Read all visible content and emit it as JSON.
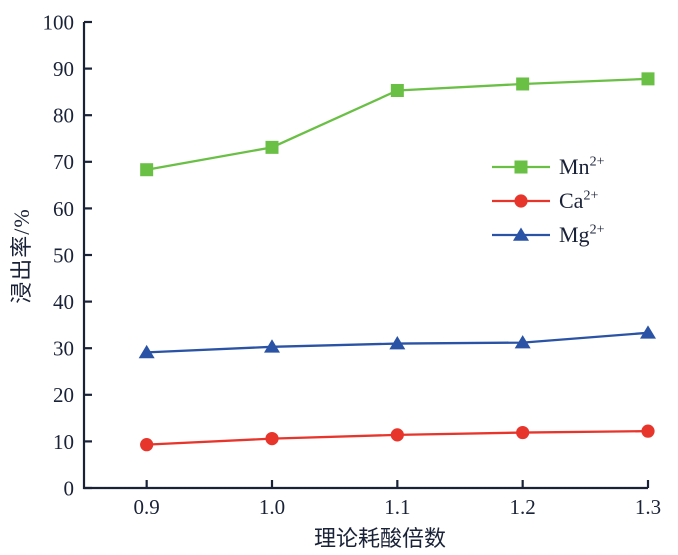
{
  "colors": {
    "background": "#ffffff",
    "axis": "#1a2238",
    "tick_text": "#1a2238",
    "mn_green": "#6abf45",
    "ca_red": "#e8352c",
    "mg_blue": "#2a53a5"
  },
  "chart_data": {
    "type": "line",
    "title": "",
    "xlabel": "理论耗酸倍数",
    "ylabel": "浸出率/%",
    "grid": false,
    "legend_position": "inside-right-middle",
    "xlim": [
      0.85,
      1.3
    ],
    "ylim": [
      0,
      100
    ],
    "x": [
      0.9,
      1.0,
      1.1,
      1.2,
      1.3
    ],
    "x_tick_labels": [
      "0.9",
      "1.0",
      "1.1",
      "1.2",
      "1.3"
    ],
    "y_ticks": [
      0,
      10,
      20,
      30,
      40,
      50,
      60,
      70,
      80,
      90,
      100
    ],
    "y_tick_labels": [
      "0",
      "10",
      "20",
      "30",
      "40",
      "50",
      "60",
      "70",
      "80",
      "90",
      "100"
    ],
    "series": [
      {
        "name": "Mn2+",
        "label_base": "Mn",
        "label_charge": "2+",
        "marker": "square",
        "color": "#6abf45",
        "values": [
          68.3,
          73.1,
          85.3,
          86.7,
          87.8
        ]
      },
      {
        "name": "Ca2+",
        "label_base": "Ca",
        "label_charge": "2+",
        "marker": "circle",
        "color": "#e8352c",
        "values": [
          9.3,
          10.6,
          11.4,
          11.9,
          12.2
        ]
      },
      {
        "name": "Mg2+",
        "label_base": "Mg",
        "label_charge": "2+",
        "marker": "triangle",
        "color": "#2a53a5",
        "values": [
          29.1,
          30.3,
          31.0,
          31.2,
          33.3
        ]
      }
    ]
  }
}
